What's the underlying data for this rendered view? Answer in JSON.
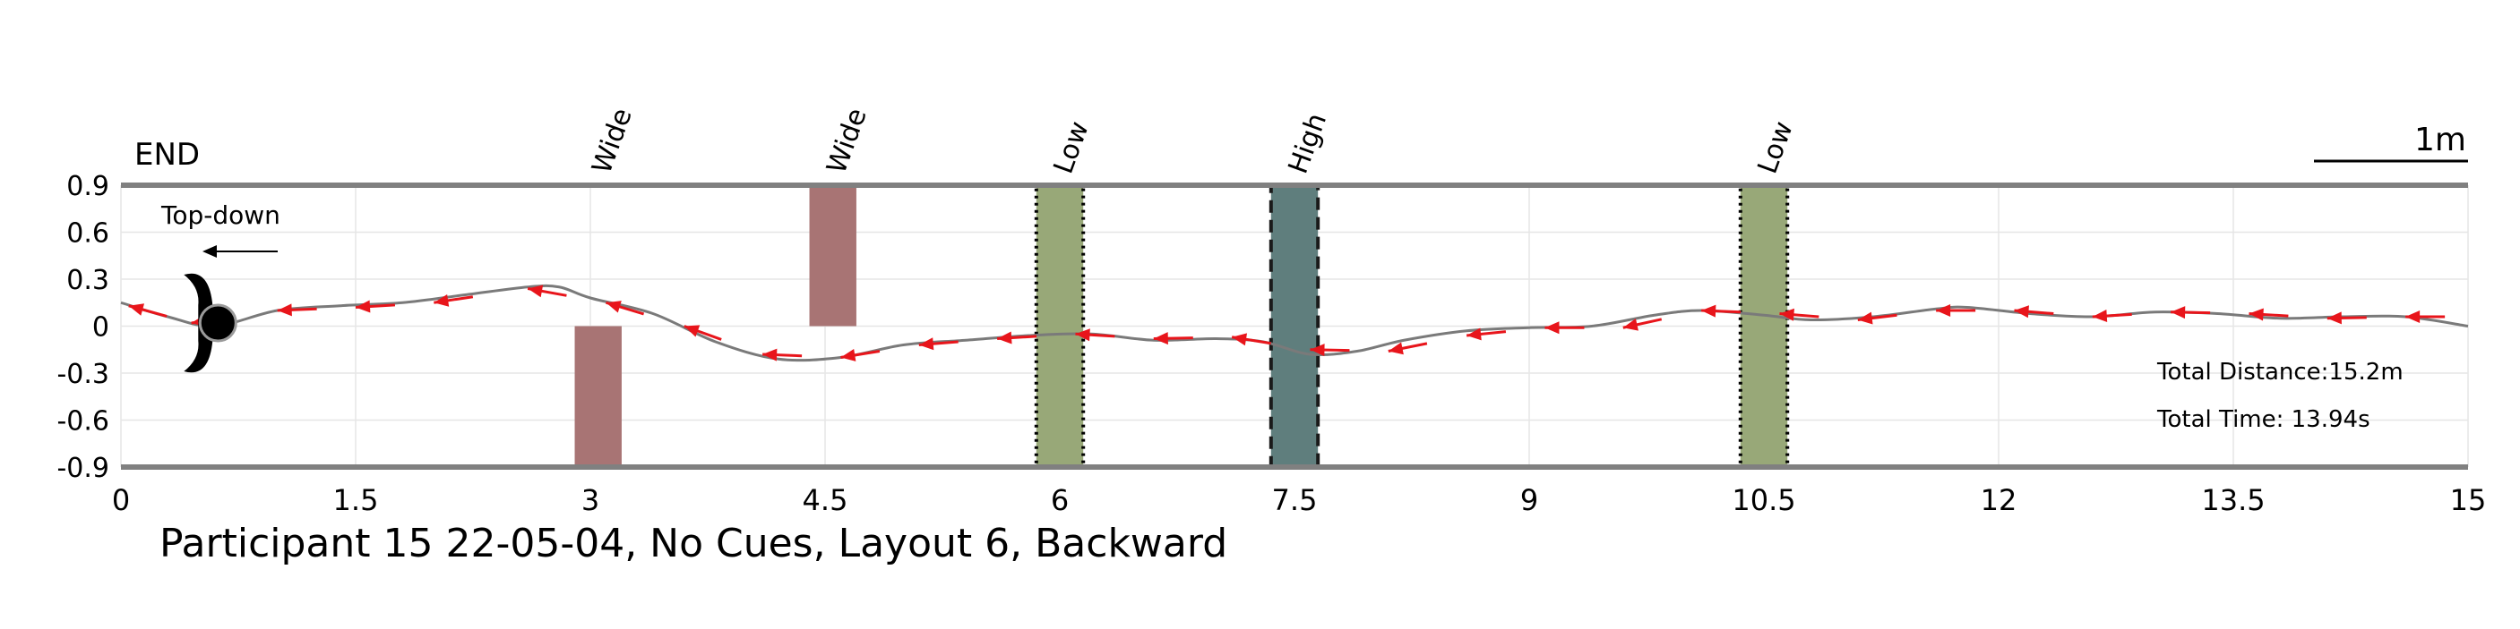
{
  "chart_data": {
    "type": "line",
    "title": "Participant 15 22-05-04, No Cues, Layout 6, Backward",
    "end_label": "END",
    "view_label": "Top-down",
    "scale_label": "1m",
    "stats": {
      "distance": "Total Distance:15.2m",
      "time": "Total Time: 13.94s"
    },
    "xlim": [
      0,
      15
    ],
    "ylim": [
      -0.9,
      0.9
    ],
    "xticks": [
      0,
      1.5,
      3,
      4.5,
      6,
      7.5,
      9,
      10.5,
      12,
      13.5,
      15
    ],
    "xtick_labels": [
      "0",
      "1.5",
      "3",
      "4.5",
      "6",
      "7.5",
      "9",
      "10.5",
      "12",
      "13.5",
      "15"
    ],
    "yticks": [
      0.9,
      0.6,
      0.3,
      0,
      -0.3,
      -0.6,
      -0.9
    ],
    "ytick_labels": [
      "0.9",
      "0.6",
      "0.3",
      "0",
      "-0.3",
      "-0.6",
      "-0.9"
    ],
    "grid": true,
    "obstacles": [
      {
        "label": "Wide",
        "x": [
          2.9,
          3.2
        ],
        "y": [
          -0.9,
          0.0
        ],
        "color": "#a87474",
        "border": "none"
      },
      {
        "label": "Wide",
        "x": [
          4.4,
          4.7
        ],
        "y": [
          0.0,
          0.9
        ],
        "color": "#a87474",
        "border": "none"
      },
      {
        "label": "Low",
        "x": [
          5.85,
          6.15
        ],
        "y": [
          -0.9,
          0.9
        ],
        "color": "#98a878",
        "border": "dotted"
      },
      {
        "label": "High",
        "x": [
          7.35,
          7.65
        ],
        "y": [
          -0.9,
          0.9
        ],
        "color": "#5f7e7d",
        "border": "dashed"
      },
      {
        "label": "Low",
        "x": [
          10.35,
          10.65
        ],
        "y": [
          -0.9,
          0.9
        ],
        "color": "#98a878",
        "border": "dotted"
      }
    ],
    "path": {
      "x": [
        0,
        0.3,
        0.6,
        1.0,
        1.4,
        1.8,
        2.2,
        2.6,
        2.8,
        3.0,
        3.4,
        3.8,
        4.2,
        4.6,
        5.0,
        5.4,
        5.8,
        6.2,
        6.6,
        7.0,
        7.3,
        7.6,
        7.9,
        8.2,
        8.6,
        9.0,
        9.4,
        9.8,
        10.1,
        10.5,
        10.8,
        11.2,
        11.6,
        11.8,
        12.2,
        12.6,
        13.0,
        13.4,
        13.8,
        14.2,
        14.6,
        15.0
      ],
      "y": [
        0.15,
        0.06,
        0.0,
        0.1,
        0.13,
        0.15,
        0.2,
        0.25,
        0.25,
        0.18,
        0.08,
        -0.1,
        -0.21,
        -0.2,
        -0.12,
        -0.09,
        -0.06,
        -0.05,
        -0.09,
        -0.08,
        -0.1,
        -0.18,
        -0.16,
        -0.09,
        -0.03,
        -0.01,
        0.0,
        0.07,
        0.1,
        0.07,
        0.04,
        0.06,
        0.11,
        0.12,
        0.08,
        0.06,
        0.09,
        0.08,
        0.05,
        0.06,
        0.06,
        0.0
      ]
    },
    "direction_arrows": {
      "x": [
        0.05,
        0.45,
        1.0,
        1.5,
        2.0,
        2.6,
        3.1,
        3.6,
        4.1,
        4.6,
        5.1,
        5.6,
        6.1,
        6.6,
        7.1,
        7.6,
        8.1,
        8.6,
        9.1,
        9.6,
        10.1,
        10.6,
        11.1,
        11.6,
        12.1,
        12.6,
        13.1,
        13.6,
        14.1,
        14.6
      ],
      "y": [
        0.13,
        0.02,
        0.1,
        0.12,
        0.15,
        0.24,
        0.15,
        0.0,
        -0.18,
        -0.2,
        -0.12,
        -0.08,
        -0.05,
        -0.08,
        -0.07,
        -0.15,
        -0.16,
        -0.06,
        -0.01,
        -0.01,
        0.1,
        0.08,
        0.04,
        0.1,
        0.1,
        0.06,
        0.09,
        0.08,
        0.05,
        0.06
      ]
    },
    "start_marker": {
      "x": 0.62,
      "y": 0.02
    }
  }
}
